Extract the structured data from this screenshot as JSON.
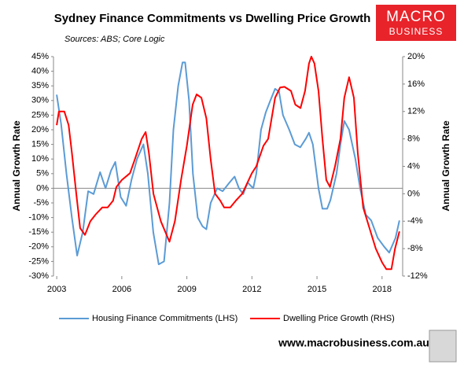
{
  "logo": [
    "MACRO",
    "BUSINESS"
  ],
  "footer": "www.macrobusiness.com.au",
  "chart_data": {
    "type": "line",
    "title": "Sydney Finance Commitments vs Dwelling Price Growth",
    "subtitle": "Sources: ABS; Core Logic",
    "ylabel": "Annual Growth Rate",
    "y2label": "Annual Growth Rate",
    "xlim": [
      2002.85,
      2018.95
    ],
    "xticks": [
      2003,
      2006,
      2009,
      2012,
      2015,
      2018
    ],
    "ylim": [
      -30,
      45
    ],
    "yticks": [
      {
        "value": -30,
        "label": "-30%"
      },
      {
        "value": -25,
        "label": "-25%"
      },
      {
        "value": -20,
        "label": "-20%"
      },
      {
        "value": -15,
        "label": "-15%"
      },
      {
        "value": -10,
        "label": "-10%"
      },
      {
        "value": -5,
        "label": "-5%"
      },
      {
        "value": 0,
        "label": "0%"
      },
      {
        "value": 5,
        "label": "5%"
      },
      {
        "value": 10,
        "label": "10%"
      },
      {
        "value": 15,
        "label": "15%"
      },
      {
        "value": 20,
        "label": "20%"
      },
      {
        "value": 25,
        "label": "25%"
      },
      {
        "value": 30,
        "label": "30%"
      },
      {
        "value": 35,
        "label": "35%"
      },
      {
        "value": 40,
        "label": "40%"
      },
      {
        "value": 45,
        "label": "45%"
      }
    ],
    "y2lim": [
      -12,
      20
    ],
    "y2ticks": [
      {
        "value": -12,
        "label": "-12%"
      },
      {
        "value": -8,
        "label": "-8%"
      },
      {
        "value": -4,
        "label": "-4%"
      },
      {
        "value": 0,
        "label": "0%"
      },
      {
        "value": 4,
        "label": "4%"
      },
      {
        "value": 8,
        "label": "8%"
      },
      {
        "value": 12,
        "label": "12%"
      },
      {
        "value": 16,
        "label": "16%"
      },
      {
        "value": 20,
        "label": "20%"
      }
    ],
    "legend": "bottom",
    "series": [
      {
        "name": "Housing Finance Commitments (LHS)",
        "color": "#5b9bd5",
        "axis": "y",
        "x": [
          2003.0,
          2003.2,
          2003.45,
          2003.7,
          2003.94,
          2004.2,
          2004.45,
          2004.7,
          2005.0,
          2005.25,
          2005.5,
          2005.7,
          2005.95,
          2006.2,
          2006.45,
          2006.7,
          2007.0,
          2007.2,
          2007.45,
          2007.7,
          2007.95,
          2008.2,
          2008.38,
          2008.6,
          2008.8,
          2008.92,
          2009.1,
          2009.28,
          2009.5,
          2009.72,
          2009.9,
          2010.1,
          2010.4,
          2010.65,
          2010.97,
          2011.2,
          2011.4,
          2011.6,
          2011.8,
          2012.06,
          2012.2,
          2012.42,
          2012.64,
          2012.85,
          2013.07,
          2013.25,
          2013.43,
          2013.72,
          2013.98,
          2014.23,
          2014.49,
          2014.63,
          2014.81,
          2015.07,
          2015.25,
          2015.47,
          2015.62,
          2015.9,
          2016.08,
          2016.26,
          2016.48,
          2016.77,
          2016.99,
          2017.25,
          2017.5,
          2017.8,
          2018.1,
          2018.33,
          2018.62,
          2018.8
        ],
        "values": [
          32,
          22,
          5,
          -10,
          -23,
          -15,
          -1,
          -2,
          5.5,
          0,
          6,
          9,
          -3,
          -6,
          3,
          10,
          15,
          5,
          -15,
          -26,
          -25,
          -5,
          20,
          35,
          43,
          43,
          30,
          5,
          -10,
          -13,
          -14,
          -5,
          0,
          -1,
          2,
          4,
          0,
          -2,
          2,
          0,
          5,
          20,
          26,
          30,
          34,
          33,
          25,
          20,
          15,
          14,
          17,
          19,
          15,
          0,
          -7,
          -7,
          -4,
          5,
          15,
          23,
          20,
          10,
          0,
          -9,
          -11,
          -17,
          -20,
          -22,
          -17,
          -11
        ]
      },
      {
        "name": "Dwelling Price Growth (RHS)",
        "color": "#ff0000",
        "axis": "y2",
        "x": [
          2003.0,
          2003.1,
          2003.35,
          2003.55,
          2003.7,
          2003.9,
          2004.08,
          2004.3,
          2004.55,
          2004.8,
          2005.1,
          2005.35,
          2005.6,
          2005.75,
          2006.0,
          2006.38,
          2006.6,
          2006.92,
          2007.1,
          2007.25,
          2007.46,
          2007.8,
          2008.2,
          2008.45,
          2008.73,
          2009.0,
          2009.27,
          2009.45,
          2009.67,
          2009.9,
          2010.1,
          2010.3,
          2010.54,
          2010.72,
          2011.0,
          2011.26,
          2011.55,
          2011.7,
          2012.0,
          2012.2,
          2012.53,
          2012.75,
          2013.07,
          2013.3,
          2013.5,
          2013.8,
          2014.0,
          2014.24,
          2014.45,
          2014.63,
          2014.74,
          2014.88,
          2015.07,
          2015.25,
          2015.43,
          2015.6,
          2015.83,
          2016.08,
          2016.26,
          2016.48,
          2016.7,
          2016.88,
          2017.13,
          2017.42,
          2017.71,
          2018.0,
          2018.2,
          2018.43,
          2018.6,
          2018.8
        ],
        "values": [
          10,
          12,
          12,
          10,
          6,
          0,
          -5,
          -6,
          -4,
          -3,
          -2,
          -2,
          -1,
          1,
          2,
          3,
          5,
          8,
          9,
          6,
          0,
          -4,
          -7,
          -4,
          2,
          7,
          13,
          14.5,
          14,
          11,
          5,
          0,
          -1,
          -2,
          -2,
          -1,
          0,
          1,
          3,
          4,
          7,
          8,
          14,
          15.5,
          15.6,
          15,
          13,
          12.5,
          15,
          19,
          20,
          19,
          15,
          8,
          2,
          1,
          4,
          8,
          14,
          17,
          14,
          6,
          -2,
          -5,
          -8,
          -10,
          -11,
          -11,
          -8,
          -5.5
        ]
      }
    ]
  }
}
